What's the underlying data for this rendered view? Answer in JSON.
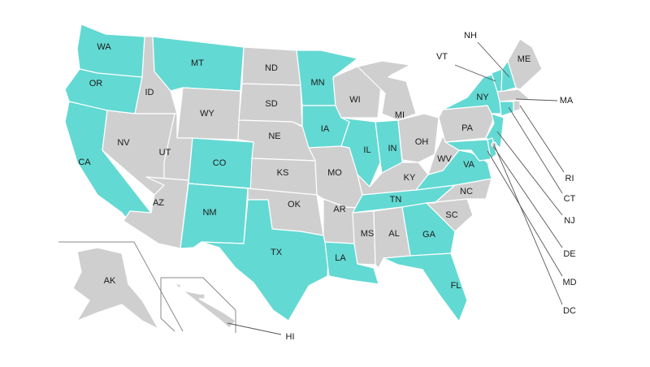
{
  "colors": {
    "highlighted": "#63d9d3",
    "default": "#cfcfcf",
    "border": "#ffffff"
  },
  "states": [
    {
      "code": "WA",
      "highlighted": true
    },
    {
      "code": "OR",
      "highlighted": true
    },
    {
      "code": "CA",
      "highlighted": true
    },
    {
      "code": "ID",
      "highlighted": false
    },
    {
      "code": "NV",
      "highlighted": false
    },
    {
      "code": "MT",
      "highlighted": true
    },
    {
      "code": "WY",
      "highlighted": false
    },
    {
      "code": "UT",
      "highlighted": false
    },
    {
      "code": "AZ",
      "highlighted": false
    },
    {
      "code": "CO",
      "highlighted": true
    },
    {
      "code": "NM",
      "highlighted": true
    },
    {
      "code": "ND",
      "highlighted": false
    },
    {
      "code": "SD",
      "highlighted": false
    },
    {
      "code": "NE",
      "highlighted": false
    },
    {
      "code": "KS",
      "highlighted": false
    },
    {
      "code": "OK",
      "highlighted": false
    },
    {
      "code": "TX",
      "highlighted": true
    },
    {
      "code": "MN",
      "highlighted": true
    },
    {
      "code": "IA",
      "highlighted": true
    },
    {
      "code": "MO",
      "highlighted": false
    },
    {
      "code": "AR",
      "highlighted": false
    },
    {
      "code": "LA",
      "highlighted": true
    },
    {
      "code": "WI",
      "highlighted": false
    },
    {
      "code": "IL",
      "highlighted": true
    },
    {
      "code": "MI",
      "highlighted": false
    },
    {
      "code": "IN",
      "highlighted": true
    },
    {
      "code": "OH",
      "highlighted": false
    },
    {
      "code": "KY",
      "highlighted": false
    },
    {
      "code": "TN",
      "highlighted": true
    },
    {
      "code": "MS",
      "highlighted": false
    },
    {
      "code": "AL",
      "highlighted": false
    },
    {
      "code": "GA",
      "highlighted": true
    },
    {
      "code": "FL",
      "highlighted": true
    },
    {
      "code": "SC",
      "highlighted": false
    },
    {
      "code": "NC",
      "highlighted": false
    },
    {
      "code": "VA",
      "highlighted": true
    },
    {
      "code": "WV",
      "highlighted": false
    },
    {
      "code": "PA",
      "highlighted": false
    },
    {
      "code": "NY",
      "highlighted": true
    },
    {
      "code": "NJ",
      "highlighted": true
    },
    {
      "code": "MD",
      "highlighted": true
    },
    {
      "code": "DE",
      "highlighted": true
    },
    {
      "code": "DC",
      "highlighted": false
    },
    {
      "code": "VT",
      "highlighted": true
    },
    {
      "code": "NH",
      "highlighted": true
    },
    {
      "code": "ME",
      "highlighted": false
    },
    {
      "code": "MA",
      "highlighted": false
    },
    {
      "code": "CT",
      "highlighted": true
    },
    {
      "code": "RI",
      "highlighted": false
    },
    {
      "code": "AK",
      "highlighted": false
    },
    {
      "code": "HI",
      "highlighted": false
    }
  ]
}
